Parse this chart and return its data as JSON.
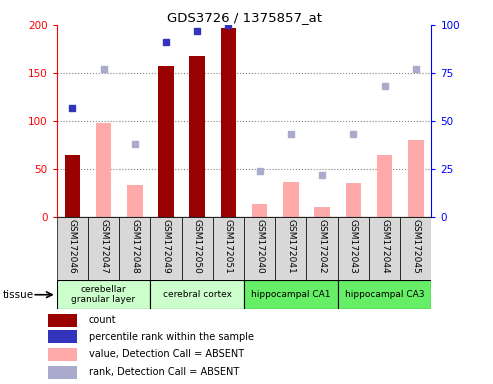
{
  "title": "GDS3726 / 1375857_at",
  "samples": [
    "GSM172046",
    "GSM172047",
    "GSM172048",
    "GSM172049",
    "GSM172050",
    "GSM172051",
    "GSM172040",
    "GSM172041",
    "GSM172042",
    "GSM172043",
    "GSM172044",
    "GSM172045"
  ],
  "count_values": [
    65,
    0,
    0,
    157,
    168,
    197,
    0,
    0,
    0,
    0,
    0,
    0
  ],
  "rank_values": [
    57,
    0,
    0,
    91,
    97,
    100,
    0,
    0,
    0,
    0,
    0,
    0
  ],
  "absent_value_values": [
    0,
    98,
    33,
    0,
    0,
    0,
    13,
    36,
    10,
    35,
    65,
    80
  ],
  "absent_rank_values": [
    0,
    77,
    38,
    0,
    0,
    0,
    24,
    43,
    22,
    43,
    68,
    77
  ],
  "ylim_left": [
    0,
    200
  ],
  "ylim_right": [
    0,
    100
  ],
  "yticks_left": [
    0,
    50,
    100,
    150,
    200
  ],
  "yticks_right": [
    0,
    25,
    50,
    75,
    100
  ],
  "color_count": "#990000",
  "color_rank": "#3333bb",
  "color_absent_value": "#ffaaaa",
  "color_absent_rank": "#aaaacc",
  "bar_width": 0.5,
  "tissue_colors": [
    "#ccffcc",
    "#ccffcc",
    "#66ee66",
    "#66ee66"
  ],
  "tissue_labels": [
    "cerebellar\ngranular layer",
    "cerebral cortex",
    "hippocampal CA1",
    "hippocampal CA3"
  ],
  "tissue_ranges": [
    [
      0,
      3
    ],
    [
      3,
      6
    ],
    [
      6,
      9
    ],
    [
      9,
      12
    ]
  ],
  "legend_labels": [
    "count",
    "percentile rank within the sample",
    "value, Detection Call = ABSENT",
    "rank, Detection Call = ABSENT"
  ],
  "legend_colors": [
    "#990000",
    "#3333bb",
    "#ffaaaa",
    "#aaaacc"
  ]
}
